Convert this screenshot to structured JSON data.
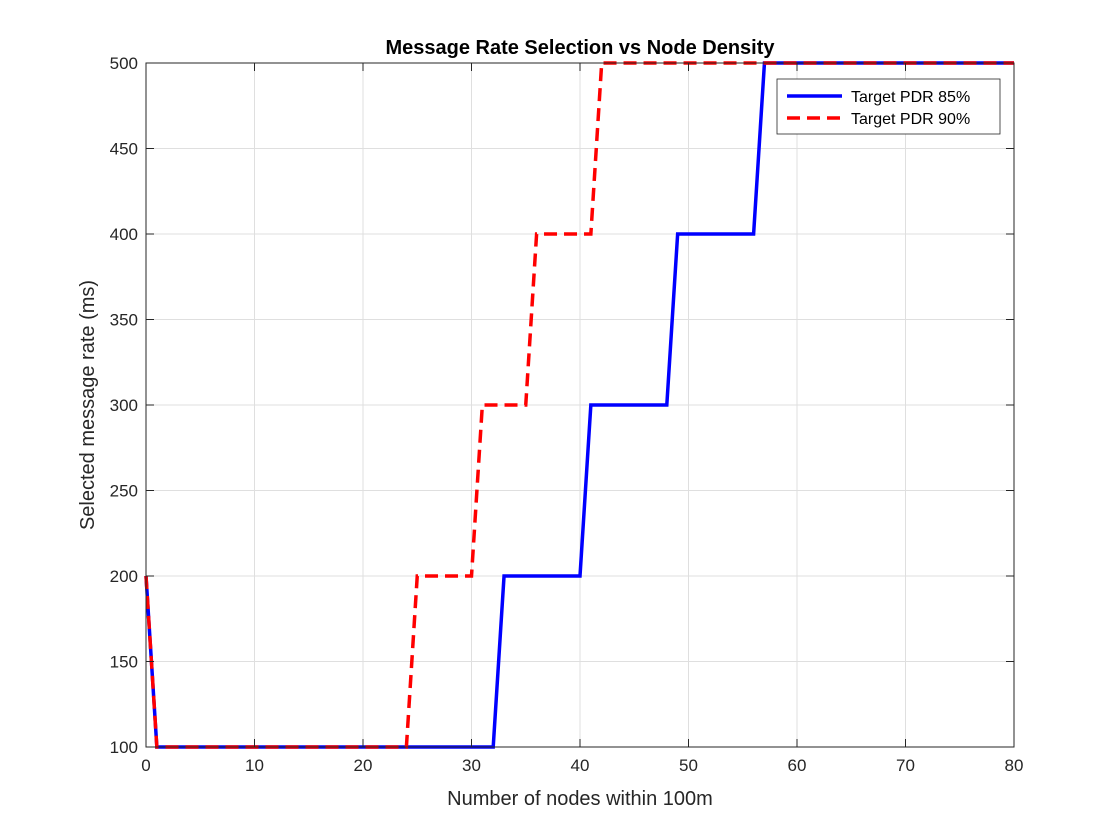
{
  "chart_data": {
    "type": "line",
    "title": "Message Rate Selection vs Node Density",
    "xlabel": "Number of nodes within 100m",
    "ylabel": "Selected message rate (ms)",
    "xlim": [
      0,
      80
    ],
    "ylim": [
      100,
      500
    ],
    "xticks": [
      0,
      10,
      20,
      30,
      40,
      50,
      60,
      70,
      80
    ],
    "yticks": [
      100,
      150,
      200,
      250,
      300,
      350,
      400,
      450,
      500
    ],
    "grid": true,
    "legend_position": "top-right",
    "series": [
      {
        "name": "Target PDR 85%",
        "color": "#0000FF",
        "style": "solid",
        "x": [
          0,
          1,
          2,
          3,
          4,
          5,
          6,
          7,
          8,
          9,
          10,
          11,
          12,
          13,
          14,
          15,
          16,
          17,
          18,
          19,
          20,
          21,
          22,
          23,
          24,
          25,
          26,
          27,
          28,
          29,
          30,
          31,
          32,
          33,
          34,
          35,
          36,
          37,
          38,
          39,
          40,
          41,
          42,
          43,
          44,
          45,
          46,
          47,
          48,
          49,
          50,
          51,
          52,
          53,
          54,
          55,
          56,
          57,
          58,
          59,
          60,
          61,
          62,
          63,
          64,
          65,
          66,
          67,
          68,
          69,
          70,
          71,
          72,
          73,
          74,
          75,
          76,
          77,
          78,
          79,
          80
        ],
        "y": [
          200,
          100,
          100,
          100,
          100,
          100,
          100,
          100,
          100,
          100,
          100,
          100,
          100,
          100,
          100,
          100,
          100,
          100,
          100,
          100,
          100,
          100,
          100,
          100,
          100,
          100,
          100,
          100,
          100,
          100,
          100,
          100,
          100,
          200,
          200,
          200,
          200,
          200,
          200,
          200,
          200,
          300,
          300,
          300,
          300,
          300,
          300,
          300,
          300,
          400,
          400,
          400,
          400,
          400,
          400,
          400,
          400,
          500,
          500,
          500,
          500,
          500,
          500,
          500,
          500,
          500,
          500,
          500,
          500,
          500,
          500,
          500,
          500,
          500,
          500,
          500,
          500,
          500,
          500,
          500,
          500
        ]
      },
      {
        "name": "Target PDR 90%",
        "color": "#FF0000",
        "style": "dashed",
        "x": [
          0,
          1,
          2,
          3,
          4,
          5,
          6,
          7,
          8,
          9,
          10,
          11,
          12,
          13,
          14,
          15,
          16,
          17,
          18,
          19,
          20,
          21,
          22,
          23,
          24,
          25,
          26,
          27,
          28,
          29,
          30,
          31,
          32,
          33,
          34,
          35,
          36,
          37,
          38,
          39,
          40,
          41,
          42,
          43,
          44,
          45,
          46,
          47,
          48,
          49,
          50,
          51,
          52,
          53,
          54,
          55,
          56,
          57,
          58,
          59,
          60,
          61,
          62,
          63,
          64,
          65,
          66,
          67,
          68,
          69,
          70,
          71,
          72,
          73,
          74,
          75,
          76,
          77,
          78,
          79,
          80
        ],
        "y": [
          200,
          100,
          100,
          100,
          100,
          100,
          100,
          100,
          100,
          100,
          100,
          100,
          100,
          100,
          100,
          100,
          100,
          100,
          100,
          100,
          100,
          100,
          100,
          100,
          100,
          200,
          200,
          200,
          200,
          200,
          200,
          300,
          300,
          300,
          300,
          300,
          400,
          400,
          400,
          400,
          400,
          400,
          500,
          500,
          500,
          500,
          500,
          500,
          500,
          500,
          500,
          500,
          500,
          500,
          500,
          500,
          500,
          500,
          500,
          500,
          500,
          500,
          500,
          500,
          500,
          500,
          500,
          500,
          500,
          500,
          500,
          500,
          500,
          500,
          500,
          500,
          500,
          500,
          500,
          500,
          500
        ]
      }
    ]
  }
}
